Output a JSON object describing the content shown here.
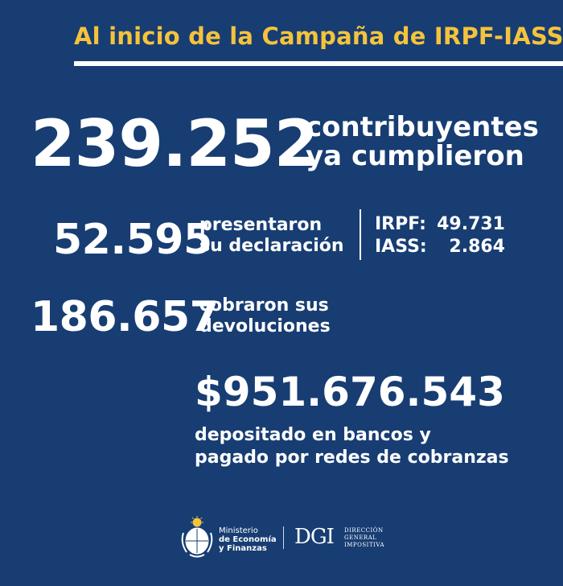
{
  "header": {
    "title": "Al inicio de la Campaña de IRPF-IASS"
  },
  "headline": {
    "number": "239.252",
    "label_line1": "contribuyentes",
    "label_line2": "ya cumplieron"
  },
  "declarations": {
    "number": "52.595",
    "label_line1": "presentaron",
    "label_line2": "su declaración",
    "breakdown": [
      {
        "key": "IRPF:",
        "value": "49.731"
      },
      {
        "key": "IASS:",
        "value": "2.864"
      }
    ]
  },
  "refunds": {
    "number": "186.657",
    "label_line1": "cobraron sus",
    "label_line2": "devoluciones"
  },
  "amount": {
    "value": "$951.676.543",
    "label_line1": "depositado en bancos y",
    "label_line2": "pagado por redes de cobranzas"
  },
  "footer": {
    "ministry_line1": "Ministerio",
    "ministry_line2": "de Economía",
    "ministry_line3": "y Finanzas",
    "dgi_logo": "DGI",
    "dgi_line1": "DIRECCIÓN",
    "dgi_line2": "GENERAL",
    "dgi_line3": "IMPOSITIVA"
  },
  "colors": {
    "background": "#173d73",
    "accent": "#f5c33b",
    "text": "#ffffff"
  }
}
